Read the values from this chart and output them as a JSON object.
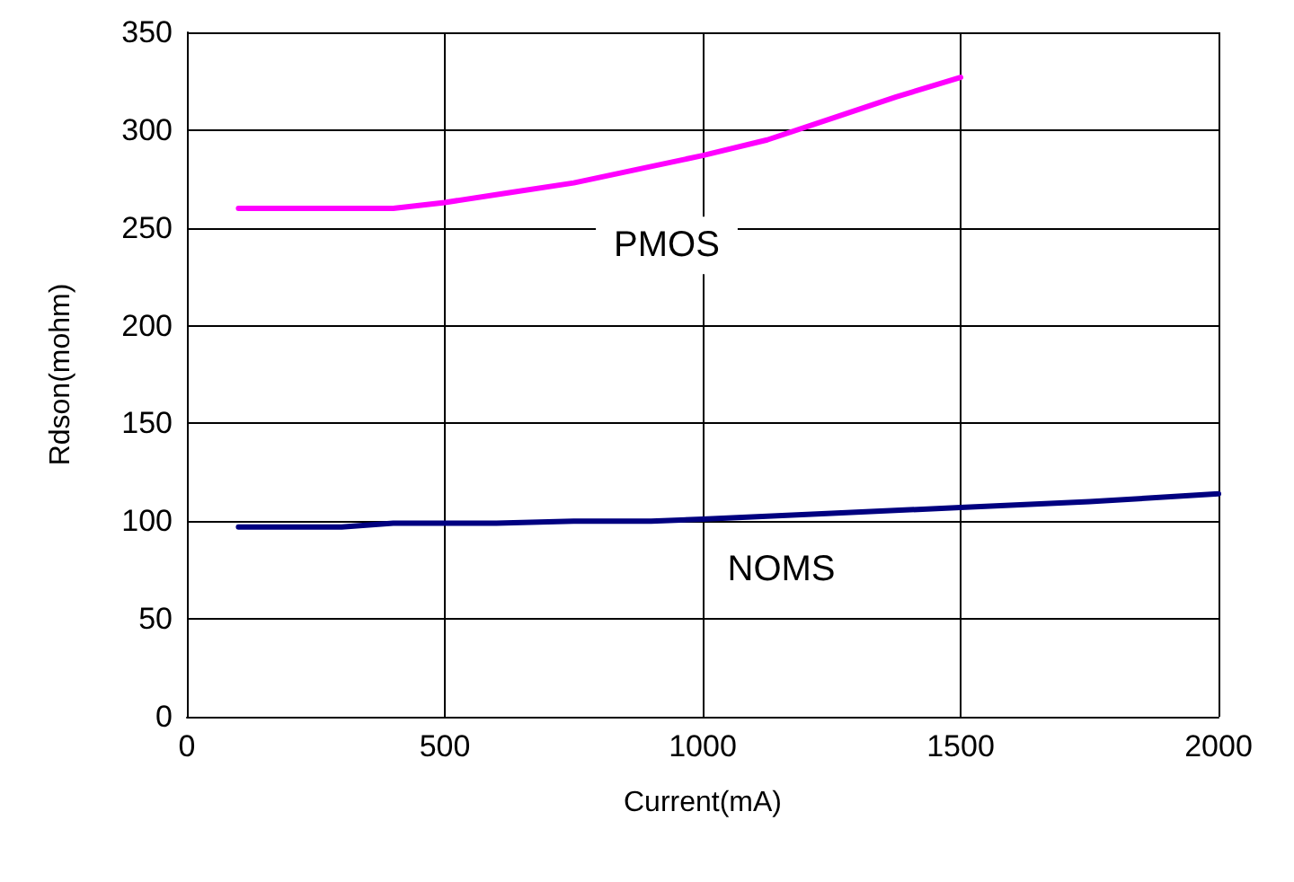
{
  "chart_data": {
    "type": "line",
    "xlabel": "Current(mA)",
    "ylabel": "Rdson(mohm)",
    "xlim": [
      0,
      2000
    ],
    "xticks": [
      0,
      500,
      1000,
      1500,
      2000
    ],
    "ylim": [
      0,
      350
    ],
    "yticks": [
      0,
      50,
      100,
      150,
      200,
      250,
      300,
      350
    ],
    "grid": true,
    "legend": false,
    "marker": "none",
    "line_style": "solid",
    "series": [
      {
        "name": "PMOS",
        "color": "#ff00ff",
        "x": [
          100,
          250,
          400,
          500,
          625,
          750,
          875,
          1000,
          1125,
          1250,
          1375,
          1500
        ],
        "values": [
          260,
          260,
          260,
          263,
          268,
          273,
          280,
          287,
          295,
          306,
          317,
          327
        ]
      },
      {
        "name": "NOMS",
        "color": "#000080",
        "x": [
          100,
          300,
          400,
          600,
          750,
          900,
          1000,
          1250,
          1500,
          1750,
          2000
        ],
        "values": [
          97,
          97,
          99,
          99,
          100,
          100,
          101,
          104,
          107,
          110,
          114
        ]
      }
    ]
  }
}
